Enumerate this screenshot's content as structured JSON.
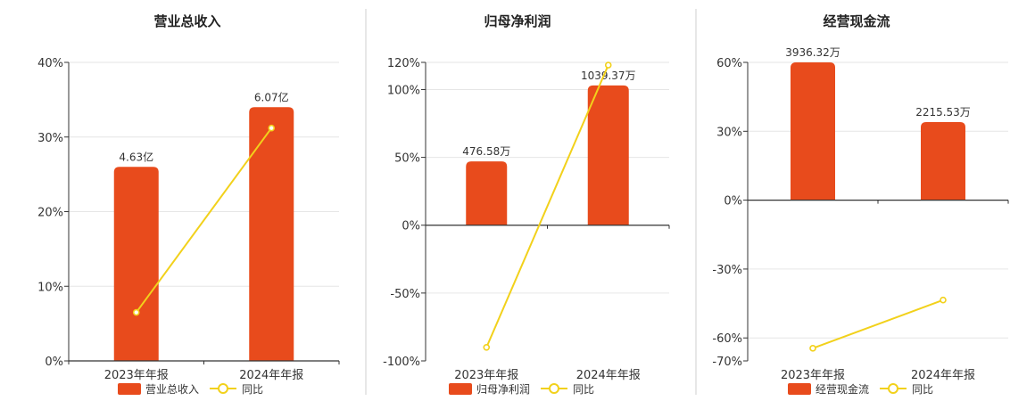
{
  "colors": {
    "bar": "#e84b1c",
    "line": "#f2d11b",
    "grid": "#e6e6e6",
    "axis": "#333333",
    "divider": "#cfcfcf"
  },
  "chart_data": [
    {
      "type": "bar",
      "title": "营业总收入",
      "categories": [
        "2023年年报",
        "2024年年报"
      ],
      "ylim": [
        0,
        40
      ],
      "yticks": [
        0,
        10,
        20,
        30,
        40
      ],
      "ytick_labels": [
        "0%",
        "10%",
        "20%",
        "30%",
        "40%"
      ],
      "series": [
        {
          "name": "营业总收入",
          "kind": "bar",
          "values": [
            26,
            34
          ],
          "labels": [
            "4.63亿",
            "6.07亿"
          ]
        },
        {
          "name": "同比",
          "kind": "line",
          "values": [
            6.5,
            31.2
          ]
        }
      ],
      "legend": [
        "营业总收入",
        "同比"
      ],
      "legend_position": "bottom",
      "grid": true
    },
    {
      "type": "bar",
      "title": "归母净利润",
      "categories": [
        "2023年年报",
        "2024年年报"
      ],
      "ylim": [
        -100,
        120
      ],
      "yticks": [
        -100,
        -50,
        0,
        50,
        100,
        120
      ],
      "ytick_labels": [
        "-100%",
        "-50%",
        "0%",
        "50%",
        "100%",
        "120%"
      ],
      "series": [
        {
          "name": "归母净利润",
          "kind": "bar",
          "values": [
            47,
            103
          ],
          "labels": [
            "476.58万",
            "1039.37万"
          ]
        },
        {
          "name": "同比",
          "kind": "line",
          "values": [
            -90,
            118
          ]
        }
      ],
      "legend": [
        "归母净利润",
        "同比"
      ],
      "legend_position": "bottom",
      "grid": true
    },
    {
      "type": "bar",
      "title": "经营现金流",
      "categories": [
        "2023年年报",
        "2024年年报"
      ],
      "ylim": [
        -70,
        60
      ],
      "yticks": [
        -70,
        -60,
        -30,
        0,
        30,
        60
      ],
      "ytick_labels": [
        "-70%",
        "-60%",
        "-30%",
        "0%",
        "30%",
        "60%"
      ],
      "series": [
        {
          "name": "经营现金流",
          "kind": "bar",
          "values": [
            60,
            34
          ],
          "labels": [
            "3936.32万",
            "2215.53万"
          ]
        },
        {
          "name": "同比",
          "kind": "line",
          "values": [
            -64.5,
            -43.5
          ]
        }
      ],
      "legend": [
        "经营现金流",
        "同比"
      ],
      "legend_position": "bottom",
      "grid": true
    }
  ]
}
